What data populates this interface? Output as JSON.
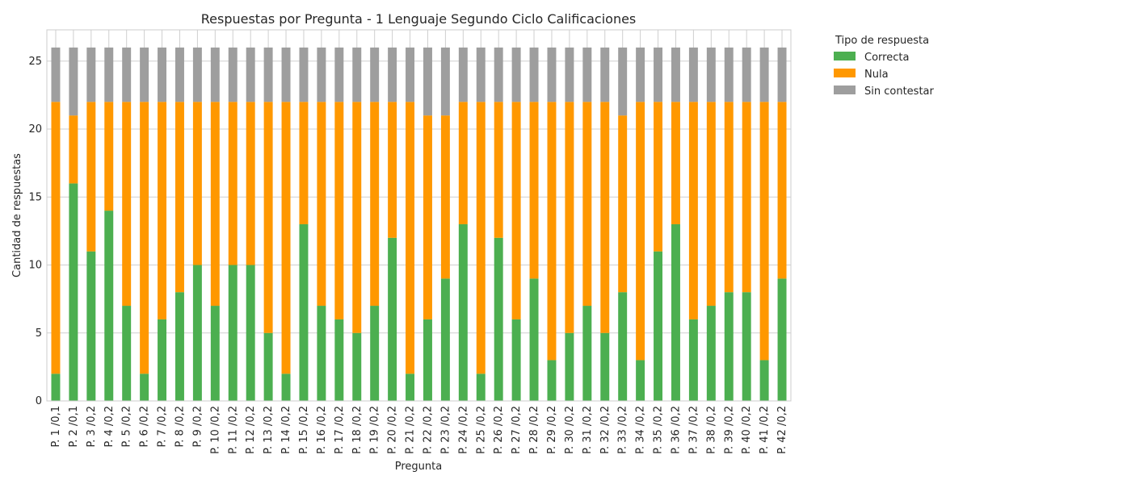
{
  "chart_data": {
    "type": "bar",
    "stacked": true,
    "title": "Respuestas por Pregunta - 1 Lenguaje  Segundo Ciclo Calificaciones",
    "xlabel": "Pregunta",
    "ylabel": "Cantidad de respuestas",
    "ylim": [
      0,
      27.3
    ],
    "yticks": [
      0,
      5,
      10,
      15,
      20,
      25
    ],
    "grid": true,
    "legend": {
      "title": "Tipo de respuesta",
      "placement": "outside-top-right"
    },
    "categories": [
      "P. 1 /0,1",
      "P. 2 /0,1",
      "P. 3 /0,2",
      "P. 4 /0,2",
      "P. 5 /0,2",
      "P. 6 /0,2",
      "P. 7 /0,2",
      "P. 8 /0,2",
      "P. 9 /0,2",
      "P. 10 /0,2",
      "P. 11 /0,2",
      "P. 12 /0,2",
      "P. 13 /0,2",
      "P. 14 /0,2",
      "P. 15 /0,2",
      "P. 16 /0,2",
      "P. 17 /0,2",
      "P. 18 /0,2",
      "P. 19 /0,2",
      "P. 20 /0,2",
      "P. 21 /0,2",
      "P. 22 /0,2",
      "P. 23 /0,2",
      "P. 24 /0,2",
      "P. 25 /0,2",
      "P. 26 /0,2",
      "P. 27 /0,2",
      "P. 28 /0,2",
      "P. 29 /0,2",
      "P. 30 /0,2",
      "P. 31 /0,2",
      "P. 32 /0,2",
      "P. 33 /0,2",
      "P. 34 /0,2",
      "P. 35 /0,2",
      "P. 36 /0,2",
      "P. 37 /0,2",
      "P. 38 /0,2",
      "P. 39 /0,2",
      "P. 40 /0,2",
      "P. 41 /0,2",
      "P. 42 /0,2"
    ],
    "series": [
      {
        "name": "Correcta",
        "color": "#4caf50",
        "values": [
          2,
          16,
          11,
          14,
          7,
          2,
          6,
          8,
          10,
          7,
          10,
          10,
          5,
          2,
          13,
          7,
          6,
          5,
          7,
          12,
          2,
          6,
          9,
          13,
          2,
          12,
          6,
          9,
          3,
          5,
          7,
          5,
          8,
          3,
          11,
          13,
          6,
          7,
          8,
          8,
          3,
          9
        ]
      },
      {
        "name": "Nula",
        "color": "#ff9800",
        "values": [
          20,
          5,
          11,
          8,
          15,
          20,
          16,
          14,
          12,
          15,
          12,
          12,
          17,
          20,
          9,
          15,
          16,
          17,
          15,
          10,
          20,
          15,
          12,
          9,
          20,
          10,
          16,
          13,
          19,
          17,
          15,
          17,
          13,
          19,
          11,
          9,
          16,
          15,
          14,
          14,
          19,
          13
        ]
      },
      {
        "name": "Sin contestar",
        "color": "#9e9e9e",
        "values": [
          4,
          5,
          4,
          4,
          4,
          4,
          4,
          4,
          4,
          4,
          4,
          4,
          4,
          4,
          4,
          4,
          4,
          4,
          4,
          4,
          4,
          5,
          5,
          4,
          4,
          4,
          4,
          4,
          4,
          4,
          4,
          4,
          5,
          4,
          4,
          4,
          4,
          4,
          4,
          4,
          4,
          4
        ]
      }
    ]
  }
}
